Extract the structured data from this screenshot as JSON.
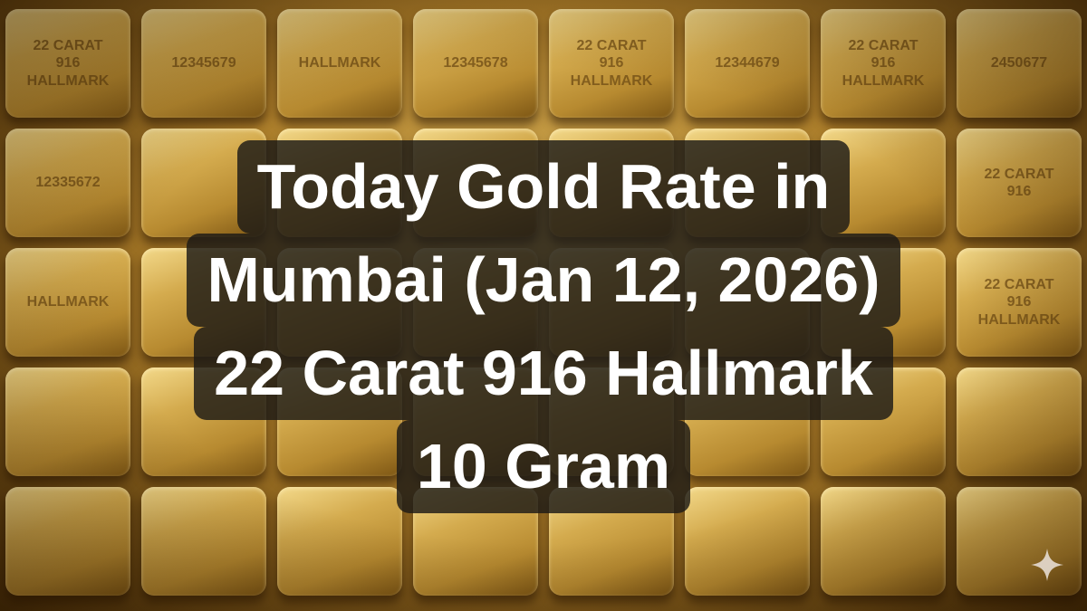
{
  "headline": {
    "line1": "Today Gold Rate in",
    "line2": "Mumbai (Jan 12, 2026)",
    "line3": "22 Carat 916 Hallmark",
    "line4": "10 Gram"
  },
  "bar_stamps": [
    "22 CARAT\n916\nHALLMARK",
    "12345679",
    "HALLMARK",
    "12345678",
    "22 CARAT\n916\nHALLMARK",
    "12344679",
    "22 CARAT\n916\nHALLMARK",
    "2450677",
    "12335672",
    "22 CARAT\n916",
    "HALLMARK",
    "22 CARAT\n916\nHALLMARK"
  ],
  "icons": {
    "corner": "sparkle-icon"
  },
  "colors": {
    "gold": "#d4ab4e",
    "panel": "#1c1a16",
    "text": "#ffffff"
  }
}
